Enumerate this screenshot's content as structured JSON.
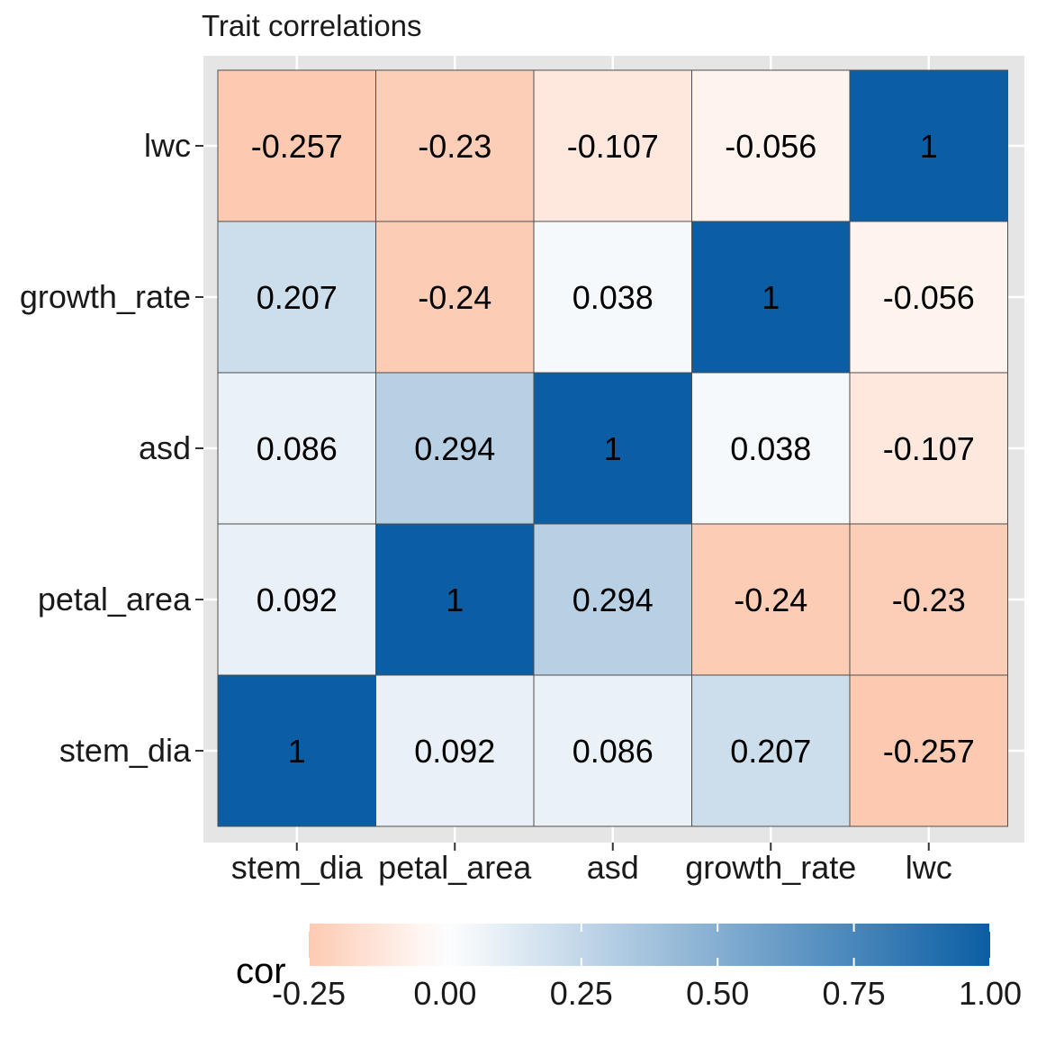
{
  "chart_data": {
    "type": "heatmap",
    "title": "Trait correlations",
    "x_categories": [
      "stem_dia",
      "petal_area",
      "asd",
      "growth_rate",
      "lwc"
    ],
    "y_categories": [
      "stem_dia",
      "petal_area",
      "asd",
      "growth_rate",
      "lwc"
    ],
    "values": [
      [
        1,
        0.092,
        0.086,
        0.207,
        -0.257
      ],
      [
        0.092,
        1,
        0.294,
        -0.24,
        -0.23
      ],
      [
        0.086,
        0.294,
        1,
        0.038,
        -0.107
      ],
      [
        0.207,
        -0.24,
        0.038,
        1,
        -0.056
      ],
      [
        -0.257,
        -0.23,
        -0.107,
        -0.056,
        1
      ]
    ],
    "labels": [
      [
        "1",
        "0.092",
        "0.086",
        "0.207",
        "-0.257"
      ],
      [
        "0.092",
        "1",
        "0.294",
        "-0.24",
        "-0.23"
      ],
      [
        "0.086",
        "0.294",
        "1",
        "0.038",
        "-0.107"
      ],
      [
        "0.207",
        "-0.24",
        "0.038",
        "1",
        "-0.056"
      ],
      [
        "-0.257",
        "-0.23",
        "-0.107",
        "-0.056",
        "1"
      ]
    ],
    "legend": {
      "title": "cor",
      "range": [
        -0.25,
        1.0
      ],
      "ticks": [
        -0.25,
        0.0,
        0.25,
        0.5,
        0.75,
        1.0
      ],
      "tick_labels": [
        "-0.25",
        "0.00",
        "0.25",
        "0.50",
        "0.75",
        "1.00"
      ],
      "position": "bottom"
    },
    "colors": {
      "low": "#FDCAB1",
      "mid": "#FFFFFF",
      "high": "#0B5EA4",
      "panel_background": "#E5E5E5",
      "grid": "#FFFFFF",
      "cell_border": "#4D4D4D"
    },
    "grid": true
  }
}
